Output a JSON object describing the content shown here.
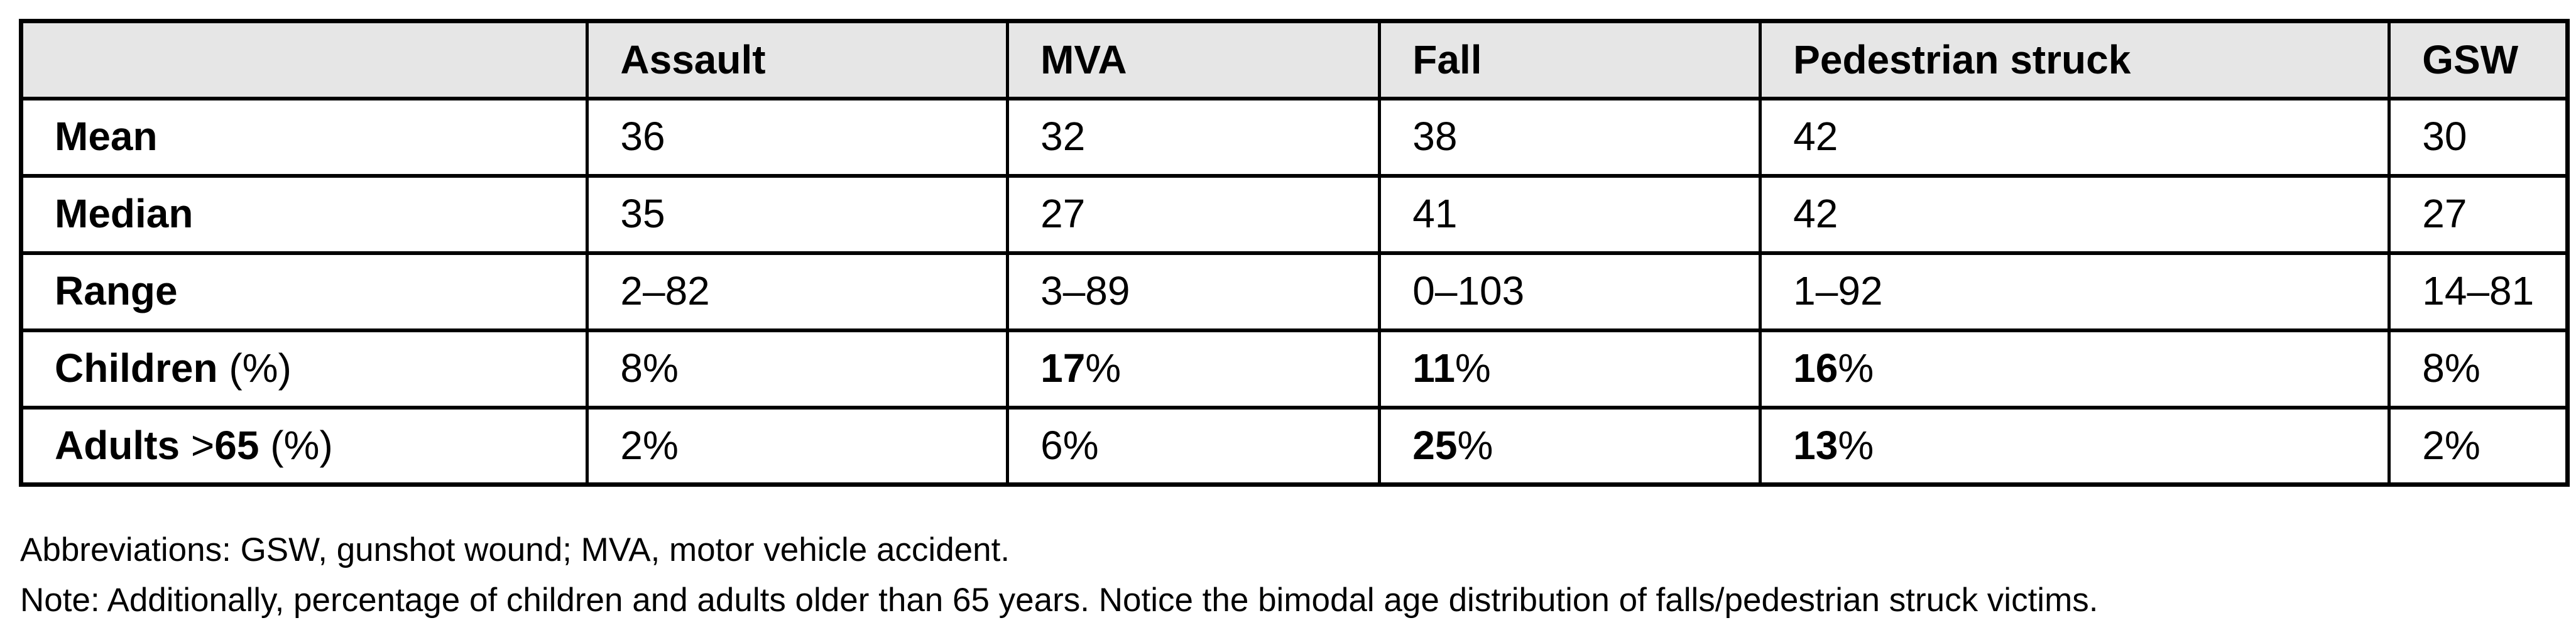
{
  "style": {
    "header_bg": "#e6e6e6",
    "border_color": "#000000",
    "text_color": "#000000",
    "page_bg": "#ffffff"
  },
  "table": {
    "header": [
      {
        "name": "blank",
        "parts": [
          {
            "text": "",
            "bold": false
          }
        ]
      },
      {
        "name": "assault",
        "parts": [
          {
            "text": "Assault",
            "bold": true
          }
        ]
      },
      {
        "name": "mva",
        "parts": [
          {
            "text": "MVA",
            "bold": true
          }
        ]
      },
      {
        "name": "fall",
        "parts": [
          {
            "text": "Fall",
            "bold": true
          }
        ]
      },
      {
        "name": "pedestrian-struck",
        "parts": [
          {
            "text": "Pedestrian struck",
            "bold": true
          }
        ]
      },
      {
        "name": "gsw",
        "parts": [
          {
            "text": "GSW",
            "bold": true
          }
        ]
      }
    ],
    "rows": [
      {
        "name": "mean",
        "cells": [
          {
            "parts": [
              {
                "text": "Mean",
                "bold": true
              }
            ]
          },
          {
            "parts": [
              {
                "text": "36",
                "bold": false
              }
            ]
          },
          {
            "parts": [
              {
                "text": "32",
                "bold": false
              }
            ]
          },
          {
            "parts": [
              {
                "text": "38",
                "bold": false
              }
            ]
          },
          {
            "parts": [
              {
                "text": "42",
                "bold": false
              }
            ]
          },
          {
            "parts": [
              {
                "text": "30",
                "bold": false
              }
            ]
          }
        ]
      },
      {
        "name": "median",
        "cells": [
          {
            "parts": [
              {
                "text": "Median",
                "bold": true
              }
            ]
          },
          {
            "parts": [
              {
                "text": "35",
                "bold": false
              }
            ]
          },
          {
            "parts": [
              {
                "text": "27",
                "bold": false
              }
            ]
          },
          {
            "parts": [
              {
                "text": "41",
                "bold": false
              }
            ]
          },
          {
            "parts": [
              {
                "text": "42",
                "bold": false
              }
            ]
          },
          {
            "parts": [
              {
                "text": "27",
                "bold": false
              }
            ]
          }
        ]
      },
      {
        "name": "range",
        "cells": [
          {
            "parts": [
              {
                "text": "Range",
                "bold": true
              }
            ]
          },
          {
            "parts": [
              {
                "text": "2–82",
                "bold": false
              }
            ]
          },
          {
            "parts": [
              {
                "text": "3–89",
                "bold": false
              }
            ]
          },
          {
            "parts": [
              {
                "text": "0–103",
                "bold": false
              }
            ]
          },
          {
            "parts": [
              {
                "text": "1–92",
                "bold": false
              }
            ]
          },
          {
            "parts": [
              {
                "text": "14–81",
                "bold": false
              }
            ]
          }
        ]
      },
      {
        "name": "children-pct",
        "cells": [
          {
            "parts": [
              {
                "text": "Children ",
                "bold": true
              },
              {
                "text": "(%)",
                "bold": false
              }
            ]
          },
          {
            "parts": [
              {
                "text": "8%",
                "bold": false
              }
            ]
          },
          {
            "parts": [
              {
                "text": "17",
                "bold": true
              },
              {
                "text": "%",
                "bold": false
              }
            ]
          },
          {
            "parts": [
              {
                "text": "11",
                "bold": true
              },
              {
                "text": "%",
                "bold": false
              }
            ]
          },
          {
            "parts": [
              {
                "text": "16",
                "bold": true
              },
              {
                "text": "%",
                "bold": false
              }
            ]
          },
          {
            "parts": [
              {
                "text": "8%",
                "bold": false
              }
            ]
          }
        ]
      },
      {
        "name": "adults-over-65-pct",
        "cells": [
          {
            "parts": [
              {
                "text": "Adults ",
                "bold": true
              },
              {
                "text": ">",
                "bold": false
              },
              {
                "text": "65",
                "bold": true
              },
              {
                "text": " (%)",
                "bold": false
              }
            ]
          },
          {
            "parts": [
              {
                "text": "2%",
                "bold": false
              }
            ]
          },
          {
            "parts": [
              {
                "text": "6%",
                "bold": false
              }
            ]
          },
          {
            "parts": [
              {
                "text": "25",
                "bold": true
              },
              {
                "text": "%",
                "bold": false
              }
            ]
          },
          {
            "parts": [
              {
                "text": "13",
                "bold": true
              },
              {
                "text": "%",
                "bold": false
              }
            ]
          },
          {
            "parts": [
              {
                "text": "2%",
                "bold": false
              }
            ]
          }
        ]
      }
    ]
  },
  "footnotes": {
    "abbreviations": "Abbreviations: GSW, gunshot wound; MVA, motor vehicle accident.",
    "note": "Note: Additionally, percentage of children and adults older than 65 years. Notice the bimodal age distribution of falls/pedestrian struck victims."
  }
}
